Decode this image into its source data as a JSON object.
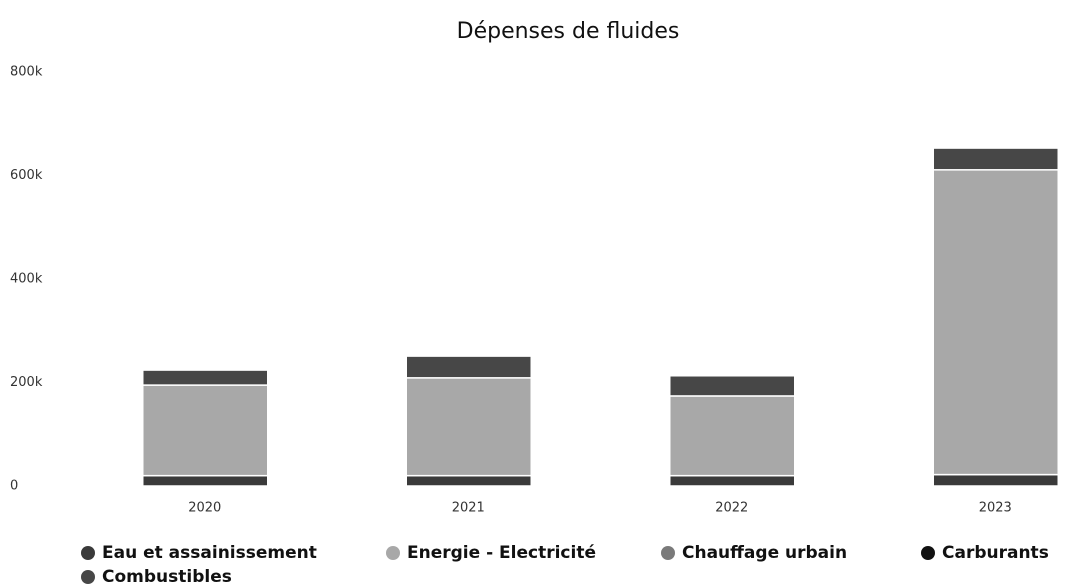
{
  "chart_data": {
    "type": "stacked-bar",
    "title": "Dépenses de fluides",
    "categories": [
      "2020",
      "2021",
      "2022",
      "2023"
    ],
    "series": [
      {
        "name": "Eau et assainissement",
        "color": "#3a3a3a",
        "values": [
          20000,
          20000,
          20000,
          22000
        ]
      },
      {
        "name": "Energie - Electricité",
        "color": "#a8a8a8",
        "values": [
          175000,
          189000,
          154000,
          589000
        ]
      },
      {
        "name": "Chauffage urbain",
        "color": "#7a7a7a",
        "values": [
          0,
          0,
          0,
          0
        ]
      },
      {
        "name": "Carburants",
        "color": "#111111",
        "values": [
          0,
          0,
          0,
          0
        ]
      },
      {
        "name": "Combustibles",
        "color": "#474747",
        "values": [
          29000,
          42000,
          39000,
          42000
        ]
      }
    ],
    "ylim": [
      0,
      800000
    ],
    "yticks": [
      {
        "value": 0,
        "label": "0"
      },
      {
        "value": 200000,
        "label": "200k"
      },
      {
        "value": 400000,
        "label": "400k"
      },
      {
        "value": 600000,
        "label": "600k"
      },
      {
        "value": 800000,
        "label": "800k"
      }
    ],
    "grid": false
  }
}
